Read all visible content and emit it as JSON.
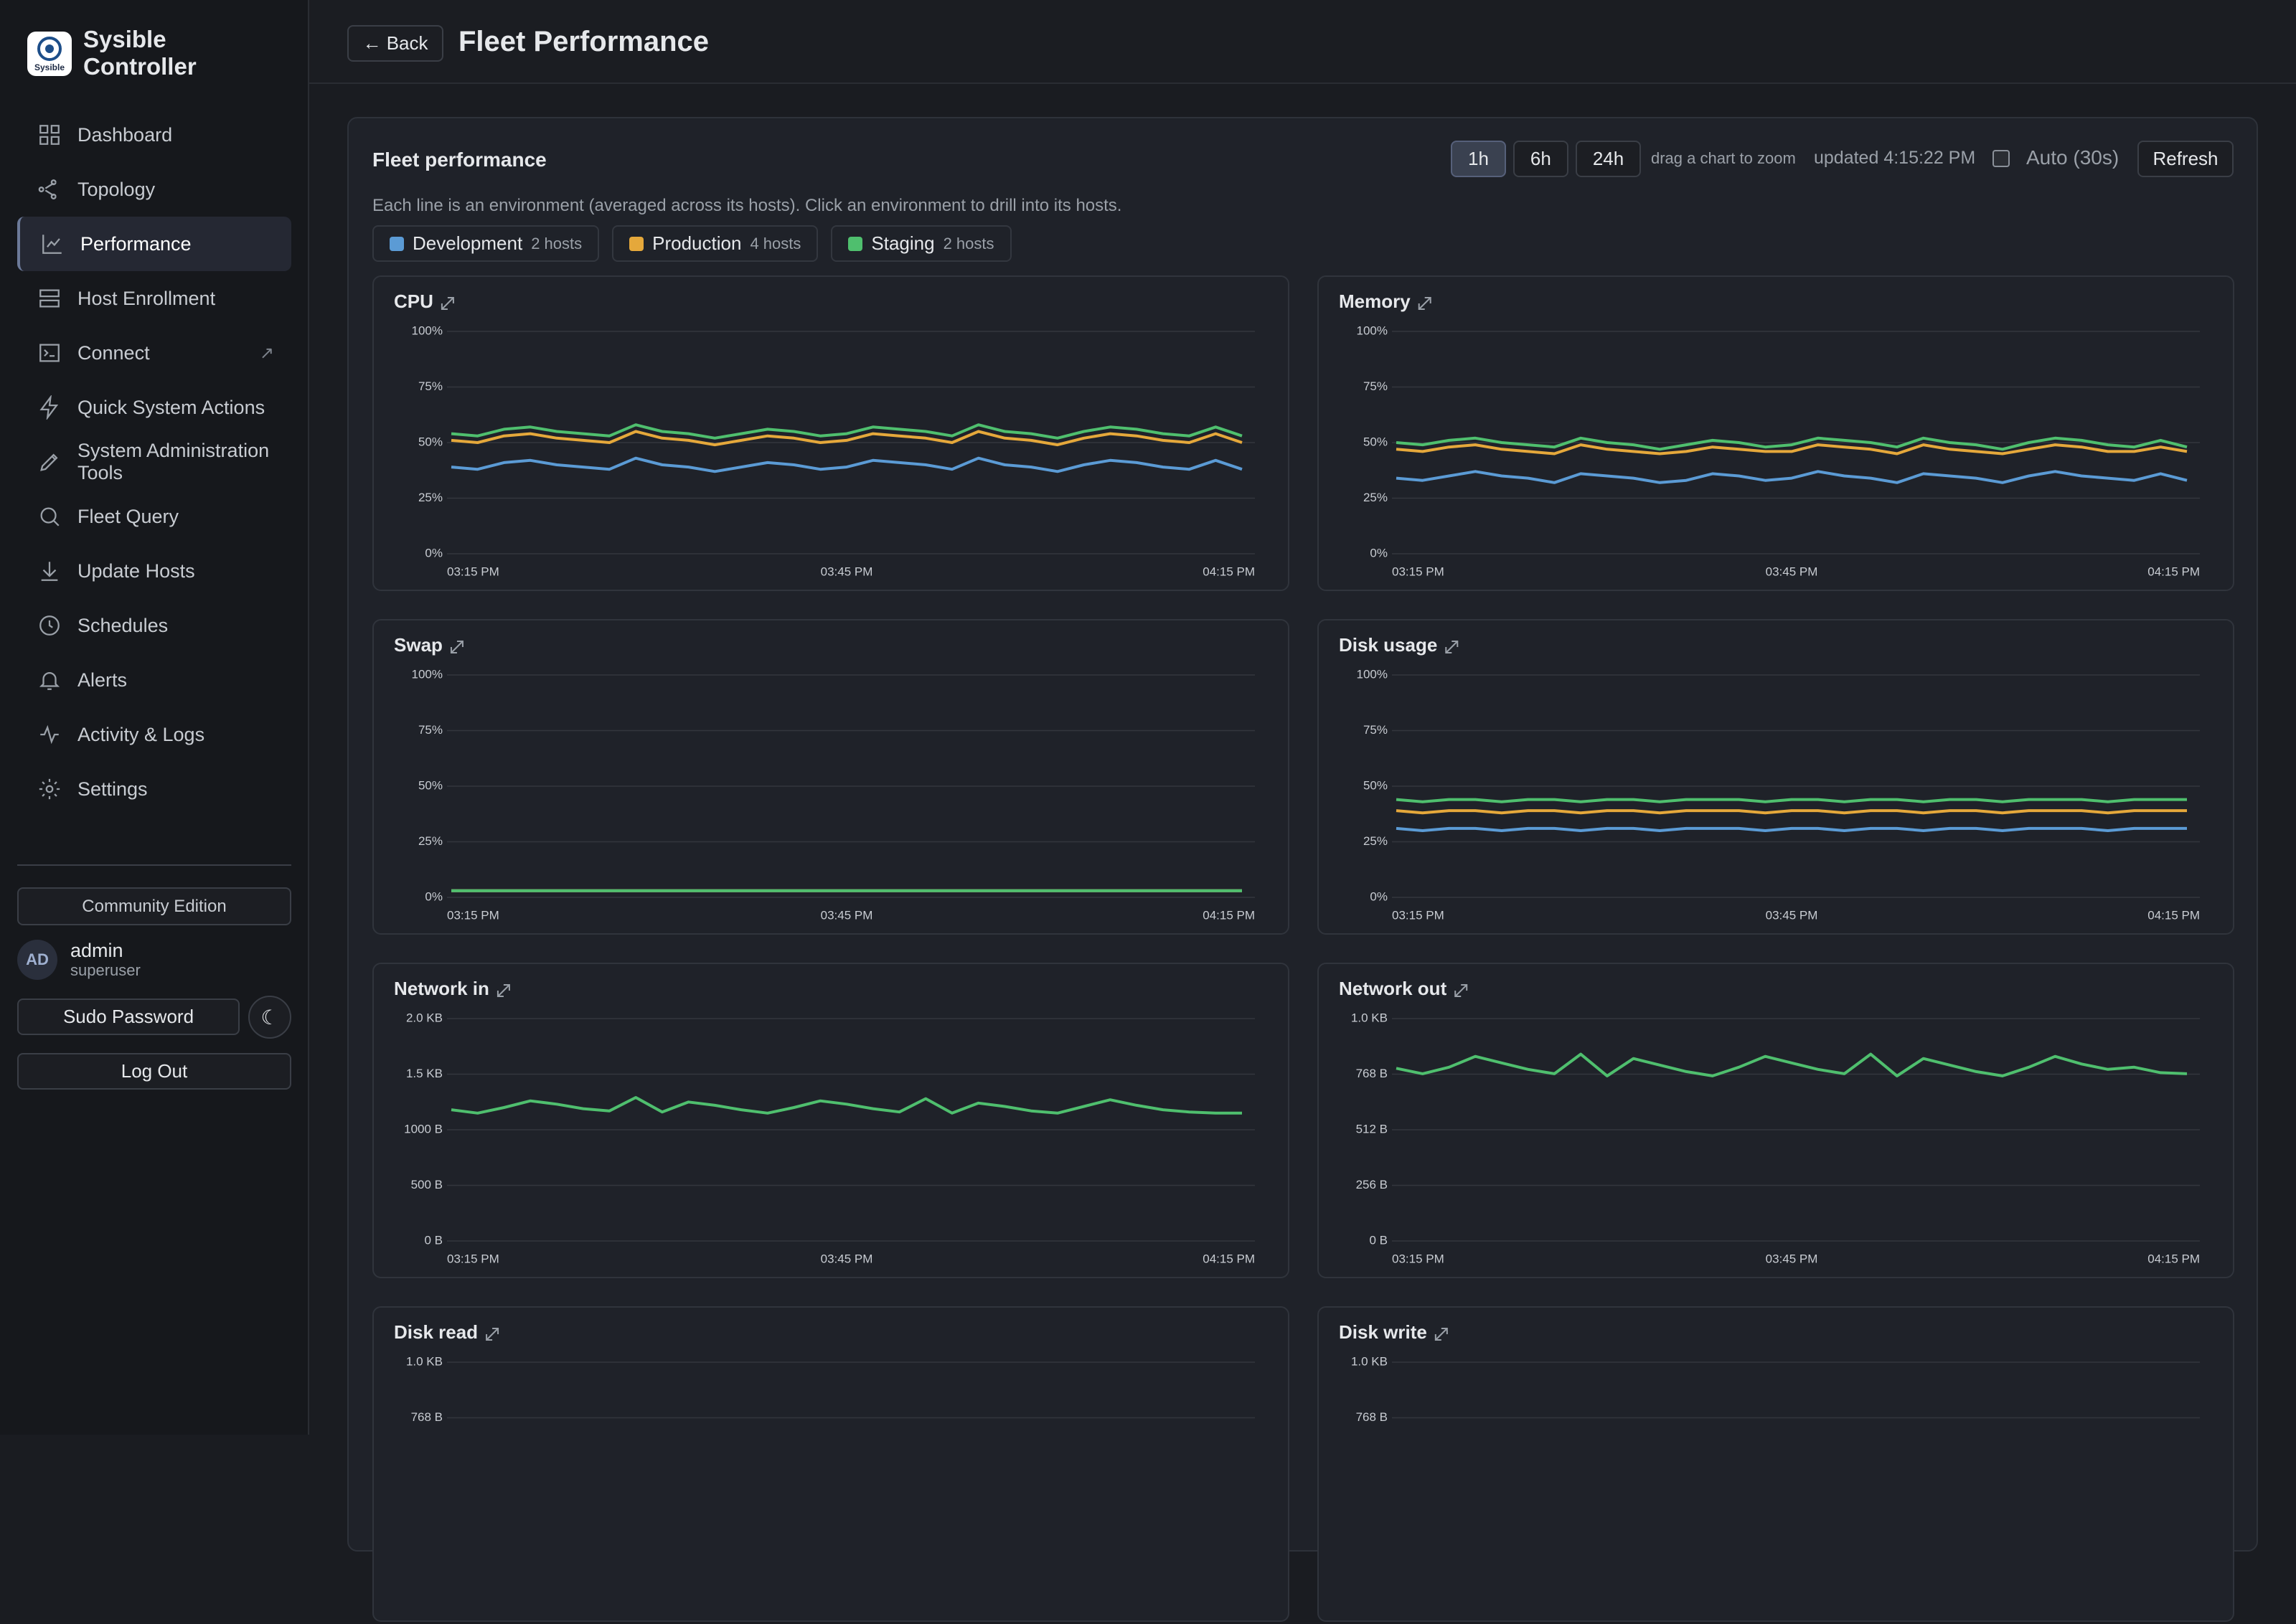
{
  "sidebar": {
    "brand": "Sysible Controller",
    "logo_text": "Sysible",
    "nav": [
      {
        "label": "Dashboard"
      },
      {
        "label": "Topology"
      },
      {
        "label": "Performance",
        "active": true
      },
      {
        "label": "Host Enrollment"
      },
      {
        "label": "Connect",
        "badge": "↗"
      },
      {
        "label": "Quick System Actions"
      },
      {
        "label": "System Administration Tools"
      },
      {
        "label": "Fleet Query"
      },
      {
        "label": "Update Hosts"
      },
      {
        "label": "Schedules"
      },
      {
        "label": "Alerts"
      },
      {
        "label": "Activity & Logs"
      },
      {
        "label": "Settings"
      }
    ],
    "edition": "Community Edition",
    "user": {
      "initials": "AD",
      "name": "admin",
      "role": "superuser"
    },
    "sudo": "Sudo Password",
    "theme_icon": "☾",
    "logout": "Log Out"
  },
  "header": {
    "back": "← Back",
    "title": "Fleet Performance"
  },
  "panel": {
    "title": "Fleet performance",
    "ranges": [
      {
        "label": "1h",
        "active": true
      },
      {
        "label": "6h"
      },
      {
        "label": "24h"
      }
    ],
    "zoom_hint": "drag a chart to zoom",
    "updated": "updated 4:15:22 PM",
    "auto": "Auto (30s)",
    "refresh": "Refresh",
    "description": "Each line is an environment (averaged across its hosts). Click an environment to drill into its hosts.",
    "environments": [
      {
        "name": "Development",
        "hosts": "2 hosts",
        "color": "#5b9bd5"
      },
      {
        "name": "Production",
        "hosts": "4 hosts",
        "color": "#e5a83b"
      },
      {
        "name": "Staging",
        "hosts": "2 hosts",
        "color": "#4fbf6e"
      }
    ]
  },
  "chart_data": [
    {
      "type": "line",
      "title": "CPU",
      "x": [
        "03:15 PM",
        "03:17 PM",
        "03:19 PM",
        "03:21 PM",
        "03:23 PM",
        "03:25 PM",
        "03:27 PM",
        "03:29 PM",
        "03:31 PM",
        "03:33 PM",
        "03:35 PM",
        "03:37 PM",
        "03:39 PM",
        "03:41 PM",
        "03:43 PM",
        "03:45 PM",
        "03:47 PM",
        "03:49 PM",
        "03:51 PM",
        "03:53 PM",
        "03:55 PM",
        "03:57 PM",
        "03:59 PM",
        "04:01 PM",
        "04:03 PM",
        "04:05 PM",
        "04:07 PM",
        "04:09 PM",
        "04:11 PM",
        "04:13 PM",
        "04:15 PM"
      ],
      "ylim": [
        0,
        100
      ],
      "yticks": [
        {
          "value": 0,
          "label": "0%"
        },
        {
          "value": 25,
          "label": "25%"
        },
        {
          "value": 50,
          "label": "50%"
        },
        {
          "value": 75,
          "label": "75%"
        },
        {
          "value": 100,
          "label": "100%"
        }
      ],
      "grid": true,
      "series": [
        {
          "color": "#5b9bd5",
          "values": [
            39,
            38,
            41,
            42,
            40,
            39,
            38,
            43,
            40,
            39,
            37,
            39,
            41,
            40,
            38,
            39,
            42,
            41,
            40,
            38,
            43,
            40,
            39,
            37,
            40,
            42,
            41,
            39,
            38,
            42,
            38
          ]
        },
        {
          "color": "#e5a83b",
          "values": [
            51,
            50,
            53,
            54,
            52,
            51,
            50,
            55,
            52,
            51,
            49,
            51,
            53,
            52,
            50,
            51,
            54,
            53,
            52,
            50,
            55,
            52,
            51,
            49,
            52,
            54,
            53,
            51,
            50,
            54,
            50
          ]
        },
        {
          "color": "#4fbf6e",
          "values": [
            54,
            53,
            56,
            57,
            55,
            54,
            53,
            58,
            55,
            54,
            52,
            54,
            56,
            55,
            53,
            54,
            57,
            56,
            55,
            53,
            58,
            55,
            54,
            52,
            55,
            57,
            56,
            54,
            53,
            57,
            53
          ]
        }
      ]
    },
    {
      "type": "line",
      "title": "Memory",
      "x": [
        "03:15 PM",
        "03:17 PM",
        "03:19 PM",
        "03:21 PM",
        "03:23 PM",
        "03:25 PM",
        "03:27 PM",
        "03:29 PM",
        "03:31 PM",
        "03:33 PM",
        "03:35 PM",
        "03:37 PM",
        "03:39 PM",
        "03:41 PM",
        "03:43 PM",
        "03:45 PM",
        "03:47 PM",
        "03:49 PM",
        "03:51 PM",
        "03:53 PM",
        "03:55 PM",
        "03:57 PM",
        "03:59 PM",
        "04:01 PM",
        "04:03 PM",
        "04:05 PM",
        "04:07 PM",
        "04:09 PM",
        "04:11 PM",
        "04:13 PM",
        "04:15 PM"
      ],
      "ylim": [
        0,
        100
      ],
      "yticks": [
        {
          "value": 0,
          "label": "0%"
        },
        {
          "value": 25,
          "label": "25%"
        },
        {
          "value": 50,
          "label": "50%"
        },
        {
          "value": 75,
          "label": "75%"
        },
        {
          "value": 100,
          "label": "100%"
        }
      ],
      "grid": true,
      "series": [
        {
          "color": "#5b9bd5",
          "values": [
            34,
            33,
            35,
            37,
            35,
            34,
            32,
            36,
            35,
            34,
            32,
            33,
            36,
            35,
            33,
            34,
            37,
            35,
            34,
            32,
            36,
            35,
            34,
            32,
            35,
            37,
            35,
            34,
            33,
            36,
            33
          ]
        },
        {
          "color": "#e5a83b",
          "values": [
            47,
            46,
            48,
            49,
            47,
            46,
            45,
            49,
            47,
            46,
            45,
            46,
            48,
            47,
            46,
            46,
            49,
            48,
            47,
            45,
            49,
            47,
            46,
            45,
            47,
            49,
            48,
            46,
            46,
            48,
            46
          ]
        },
        {
          "color": "#4fbf6e",
          "values": [
            50,
            49,
            51,
            52,
            50,
            49,
            48,
            52,
            50,
            49,
            47,
            49,
            51,
            50,
            48,
            49,
            52,
            51,
            50,
            48,
            52,
            50,
            49,
            47,
            50,
            52,
            51,
            49,
            48,
            51,
            48
          ]
        }
      ]
    },
    {
      "type": "line",
      "title": "Swap",
      "x": [
        "03:15 PM",
        "03:17 PM",
        "03:19 PM",
        "03:21 PM",
        "03:23 PM",
        "03:25 PM",
        "03:27 PM",
        "03:29 PM",
        "03:31 PM",
        "03:33 PM",
        "03:35 PM",
        "03:37 PM",
        "03:39 PM",
        "03:41 PM",
        "03:43 PM",
        "03:45 PM",
        "03:47 PM",
        "03:49 PM",
        "03:51 PM",
        "03:53 PM",
        "03:55 PM",
        "03:57 PM",
        "03:59 PM",
        "04:01 PM",
        "04:03 PM",
        "04:05 PM",
        "04:07 PM",
        "04:09 PM",
        "04:11 PM",
        "04:13 PM",
        "04:15 PM"
      ],
      "ylim": [
        0,
        100
      ],
      "yticks": [
        {
          "value": 0,
          "label": "0%"
        },
        {
          "value": 25,
          "label": "25%"
        },
        {
          "value": 50,
          "label": "50%"
        },
        {
          "value": 75,
          "label": "75%"
        },
        {
          "value": 100,
          "label": "100%"
        }
      ],
      "grid": true,
      "series": [
        {
          "color": "#5b9bd5",
          "values": [
            3,
            3,
            3,
            3,
            3,
            3,
            3,
            3,
            3,
            3,
            3,
            3,
            3,
            3,
            3,
            3,
            3,
            3,
            3,
            3,
            3,
            3,
            3,
            3,
            3,
            3,
            3,
            3,
            3,
            3,
            3
          ]
        },
        {
          "color": "#e5a83b",
          "values": [
            3,
            3,
            3,
            3,
            3,
            3,
            3,
            3,
            3,
            3,
            3,
            3,
            3,
            3,
            3,
            3,
            3,
            3,
            3,
            3,
            3,
            3,
            3,
            3,
            3,
            3,
            3,
            3,
            3,
            3,
            3
          ]
        },
        {
          "color": "#4fbf6e",
          "values": [
            3,
            3,
            3,
            3,
            3,
            3,
            3,
            3,
            3,
            3,
            3,
            3,
            3,
            3,
            3,
            3,
            3,
            3,
            3,
            3,
            3,
            3,
            3,
            3,
            3,
            3,
            3,
            3,
            3,
            3,
            3
          ]
        }
      ]
    },
    {
      "type": "line",
      "title": "Disk usage",
      "x": [
        "03:15 PM",
        "03:17 PM",
        "03:19 PM",
        "03:21 PM",
        "03:23 PM",
        "03:25 PM",
        "03:27 PM",
        "03:29 PM",
        "03:31 PM",
        "03:33 PM",
        "03:35 PM",
        "03:37 PM",
        "03:39 PM",
        "03:41 PM",
        "03:43 PM",
        "03:45 PM",
        "03:47 PM",
        "03:49 PM",
        "03:51 PM",
        "03:53 PM",
        "03:55 PM",
        "03:57 PM",
        "03:59 PM",
        "04:01 PM",
        "04:03 PM",
        "04:05 PM",
        "04:07 PM",
        "04:09 PM",
        "04:11 PM",
        "04:13 PM",
        "04:15 PM"
      ],
      "ylim": [
        0,
        100
      ],
      "yticks": [
        {
          "value": 0,
          "label": "0%"
        },
        {
          "value": 25,
          "label": "25%"
        },
        {
          "value": 50,
          "label": "50%"
        },
        {
          "value": 75,
          "label": "75%"
        },
        {
          "value": 100,
          "label": "100%"
        }
      ],
      "grid": true,
      "series": [
        {
          "color": "#5b9bd5",
          "values": [
            31,
            30,
            31,
            31,
            30,
            31,
            31,
            30,
            31,
            31,
            30,
            31,
            31,
            31,
            30,
            31,
            31,
            30,
            31,
            31,
            30,
            31,
            31,
            30,
            31,
            31,
            31,
            30,
            31,
            31,
            31
          ]
        },
        {
          "color": "#e5a83b",
          "values": [
            39,
            38,
            39,
            39,
            38,
            39,
            39,
            38,
            39,
            39,
            38,
            39,
            39,
            39,
            38,
            39,
            39,
            38,
            39,
            39,
            38,
            39,
            39,
            38,
            39,
            39,
            39,
            38,
            39,
            39,
            39
          ]
        },
        {
          "color": "#4fbf6e",
          "values": [
            44,
            43,
            44,
            44,
            43,
            44,
            44,
            43,
            44,
            44,
            43,
            44,
            44,
            44,
            43,
            44,
            44,
            43,
            44,
            44,
            43,
            44,
            44,
            43,
            44,
            44,
            44,
            43,
            44,
            44,
            44
          ]
        }
      ]
    },
    {
      "type": "line",
      "title": "Network in",
      "x": [
        "03:15 PM",
        "03:17 PM",
        "03:19 PM",
        "03:21 PM",
        "03:23 PM",
        "03:25 PM",
        "03:27 PM",
        "03:29 PM",
        "03:31 PM",
        "03:33 PM",
        "03:35 PM",
        "03:37 PM",
        "03:39 PM",
        "03:41 PM",
        "03:43 PM",
        "03:45 PM",
        "03:47 PM",
        "03:49 PM",
        "03:51 PM",
        "03:53 PM",
        "03:55 PM",
        "03:57 PM",
        "03:59 PM",
        "04:01 PM",
        "04:03 PM",
        "04:05 PM",
        "04:07 PM",
        "04:09 PM",
        "04:11 PM",
        "04:13 PM",
        "04:15 PM"
      ],
      "ylim": [
        0,
        2000
      ],
      "yticks": [
        {
          "value": 0,
          "label": "0 B"
        },
        {
          "value": 500,
          "label": "500 B"
        },
        {
          "value": 1000,
          "label": "1000 B"
        },
        {
          "value": 1500,
          "label": "1.5 KB"
        },
        {
          "value": 2000,
          "label": "2.0 KB"
        }
      ],
      "grid": true,
      "series": [
        {
          "color": "#4fbf6e",
          "values": [
            1180,
            1150,
            1200,
            1260,
            1230,
            1190,
            1170,
            1290,
            1160,
            1250,
            1220,
            1180,
            1150,
            1200,
            1260,
            1230,
            1190,
            1160,
            1280,
            1150,
            1240,
            1210,
            1170,
            1150,
            1210,
            1270,
            1220,
            1180,
            1160,
            1150,
            1150
          ]
        }
      ]
    },
    {
      "type": "line",
      "title": "Network out",
      "x": [
        "03:15 PM",
        "03:17 PM",
        "03:19 PM",
        "03:21 PM",
        "03:23 PM",
        "03:25 PM",
        "03:27 PM",
        "03:29 PM",
        "03:31 PM",
        "03:33 PM",
        "03:35 PM",
        "03:37 PM",
        "03:39 PM",
        "03:41 PM",
        "03:43 PM",
        "03:45 PM",
        "03:47 PM",
        "03:49 PM",
        "03:51 PM",
        "03:53 PM",
        "03:55 PM",
        "03:57 PM",
        "03:59 PM",
        "04:01 PM",
        "04:03 PM",
        "04:05 PM",
        "04:07 PM",
        "04:09 PM",
        "04:11 PM",
        "04:13 PM",
        "04:15 PM"
      ],
      "ylim": [
        0,
        1024
      ],
      "yticks": [
        {
          "value": 0,
          "label": "0 B"
        },
        {
          "value": 256,
          "label": "256 B"
        },
        {
          "value": 512,
          "label": "512 B"
        },
        {
          "value": 768,
          "label": "768 B"
        },
        {
          "value": 1024,
          "label": "1.0 KB"
        }
      ],
      "grid": true,
      "series": [
        {
          "color": "#4fbf6e",
          "values": [
            795,
            770,
            800,
            850,
            820,
            790,
            770,
            860,
            760,
            840,
            810,
            780,
            760,
            800,
            850,
            820,
            790,
            770,
            860,
            760,
            840,
            810,
            780,
            760,
            800,
            850,
            815,
            790,
            800,
            775,
            770
          ]
        }
      ]
    },
    {
      "type": "line",
      "title": "Disk read",
      "ylim": [
        0,
        1024
      ],
      "yticks": [
        {
          "value": 768,
          "label": "768 B"
        },
        {
          "value": 1024,
          "label": "1.0 KB"
        }
      ],
      "grid": true,
      "series": []
    },
    {
      "type": "line",
      "title": "Disk write",
      "ylim": [
        0,
        1024
      ],
      "yticks": [
        {
          "value": 768,
          "label": "768 B"
        },
        {
          "value": 1024,
          "label": "1.0 KB"
        }
      ],
      "grid": true,
      "series": []
    }
  ]
}
